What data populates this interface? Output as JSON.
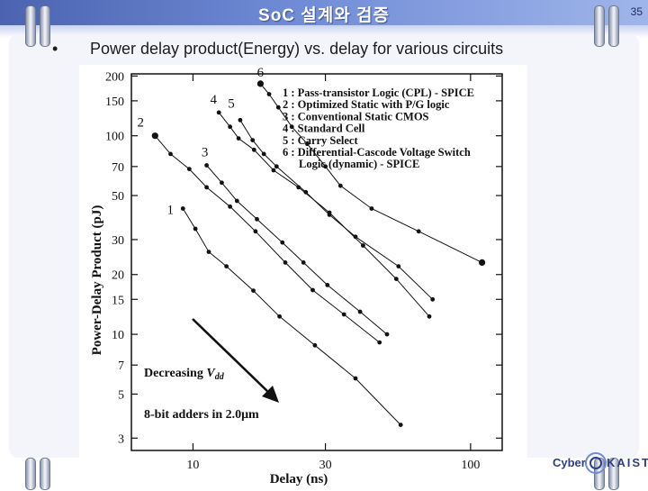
{
  "header": {
    "title": "SoC 설계와 검증",
    "page_number": "35"
  },
  "bullet": "•",
  "subtitle": "Power delay product(Energy) vs. delay for various circuits",
  "logo": {
    "left_text": "Cyber",
    "right_text": "KAIST",
    "brand_color": "#2e3f88"
  },
  "chart_data": {
    "type": "line",
    "xscale": "log",
    "yscale": "log",
    "xlabel": "Delay (ns)",
    "ylabel": "Power-Delay Product (pJ)",
    "xlim": [
      6,
      130
    ],
    "ylim": [
      2.6,
      205
    ],
    "x_ticks": [
      10,
      30,
      100
    ],
    "y_ticks": [
      3,
      5,
      7,
      10,
      15,
      20,
      30,
      50,
      70,
      100,
      150,
      200
    ],
    "legend": [
      "1 : Pass-transistor Logic (CPL) - SPICE",
      "2 : Optimized Static with P/G logic",
      "3 : Conventional Static CMOS",
      "4 : Standard Cell",
      "5 : Carry Select",
      "6 : Differential-Cascode Voltage Switch",
      "Logic (dynamic) - SPICE"
    ],
    "annotations": {
      "arrow_label_prefix": "Decreasing ",
      "arrow_label_var": "V",
      "arrow_label_sub": "dd",
      "process_note": "8-bit adders in 2.0μm"
    },
    "series": [
      {
        "label": "1",
        "points": [
          [
            9.2,
            43
          ],
          [
            10.2,
            34
          ],
          [
            11.4,
            26
          ],
          [
            13.2,
            22
          ],
          [
            16.5,
            16.6
          ],
          [
            20.5,
            12.3
          ],
          [
            27.5,
            8.8
          ],
          [
            38.5,
            6.0
          ],
          [
            56,
            3.5
          ]
        ]
      },
      {
        "label": "2",
        "points": [
          [
            7.3,
            100
          ],
          [
            8.3,
            81
          ],
          [
            9.7,
            68
          ],
          [
            11.2,
            55
          ],
          [
            13.6,
            44
          ],
          [
            16.8,
            33
          ],
          [
            21.5,
            23
          ],
          [
            27,
            16.7
          ],
          [
            35,
            12.6
          ],
          [
            47,
            9.1
          ]
        ]
      },
      {
        "label": "3",
        "points": [
          [
            11.2,
            71
          ],
          [
            12.7,
            58
          ],
          [
            14.4,
            47
          ],
          [
            17,
            38
          ],
          [
            21,
            29
          ],
          [
            25,
            23
          ],
          [
            30.5,
            17.7
          ],
          [
            40,
            13
          ],
          [
            50,
            10
          ]
        ]
      },
      {
        "label": "4",
        "points": [
          [
            12.4,
            131
          ],
          [
            13.6,
            111
          ],
          [
            14.6,
            97
          ],
          [
            16.6,
            85
          ],
          [
            19.5,
            67
          ],
          [
            24,
            55
          ],
          [
            31,
            41
          ],
          [
            41,
            28
          ],
          [
            54,
            19
          ],
          [
            71,
            12.3
          ]
        ]
      },
      {
        "label": "5",
        "points": [
          [
            14.8,
            120
          ],
          [
            16.4,
            95
          ],
          [
            18,
            81
          ],
          [
            20,
            70
          ],
          [
            25.5,
            52
          ],
          [
            31,
            40
          ],
          [
            38.5,
            31
          ],
          [
            55,
            22
          ],
          [
            73,
            15
          ]
        ]
      },
      {
        "label": "6",
        "points": [
          [
            17.5,
            183
          ],
          [
            18.8,
            162
          ],
          [
            20.3,
            139
          ],
          [
            22.7,
            111
          ],
          [
            25.8,
            91
          ],
          [
            30,
            70
          ],
          [
            34,
            56
          ],
          [
            44,
            43
          ],
          [
            65,
            33
          ],
          [
            110,
            23
          ]
        ]
      }
    ]
  }
}
